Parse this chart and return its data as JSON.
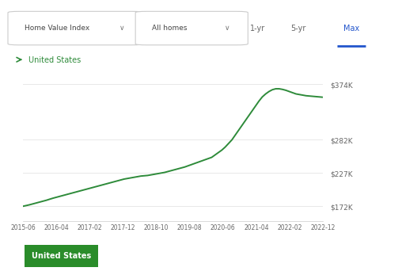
{
  "line_color": "#2e8b3a",
  "background_color": "#ffffff",
  "x_labels": [
    "2015-06",
    "2016-04",
    "2017-02",
    "2017-12",
    "2018-10",
    "2019-08",
    "2020-06",
    "2021-04",
    "2022-02",
    "2022-12"
  ],
  "y_ticks": [
    172000,
    227000,
    282000,
    374000
  ],
  "y_tick_labels": [
    "$172K",
    "$227K",
    "$282K",
    "$374K"
  ],
  "ylim": [
    148000,
    400000
  ],
  "legend_label": "United States",
  "legend_color": "#2e8b3a",
  "button_color": "#2a8c2a",
  "button_text": "United States",
  "button_text_color": "#ffffff",
  "data_y": [
    172000,
    173200,
    174500,
    176000,
    177500,
    179000,
    180500,
    182000,
    183800,
    185500,
    187000,
    188500,
    190000,
    191500,
    193000,
    194500,
    196000,
    197500,
    199000,
    200500,
    202000,
    203500,
    205000,
    206500,
    208000,
    209500,
    211000,
    212500,
    214000,
    215500,
    217000,
    218000,
    219000,
    220000,
    221000,
    222000,
    222500,
    223000,
    224000,
    225000,
    226000,
    227000,
    228000,
    229500,
    231000,
    232500,
    234000,
    235500,
    237000,
    239000,
    241000,
    243000,
    245000,
    247000,
    249000,
    251000,
    253000,
    257000,
    261000,
    265000,
    270000,
    276000,
    282000,
    290000,
    298000,
    306000,
    314000,
    322000,
    330000,
    338000,
    346000,
    353000,
    358000,
    362000,
    365000,
    366500,
    366500,
    365500,
    364000,
    362000,
    360000,
    358000,
    357000,
    356000,
    355000,
    354500,
    354000,
    353500,
    353000,
    352500
  ]
}
